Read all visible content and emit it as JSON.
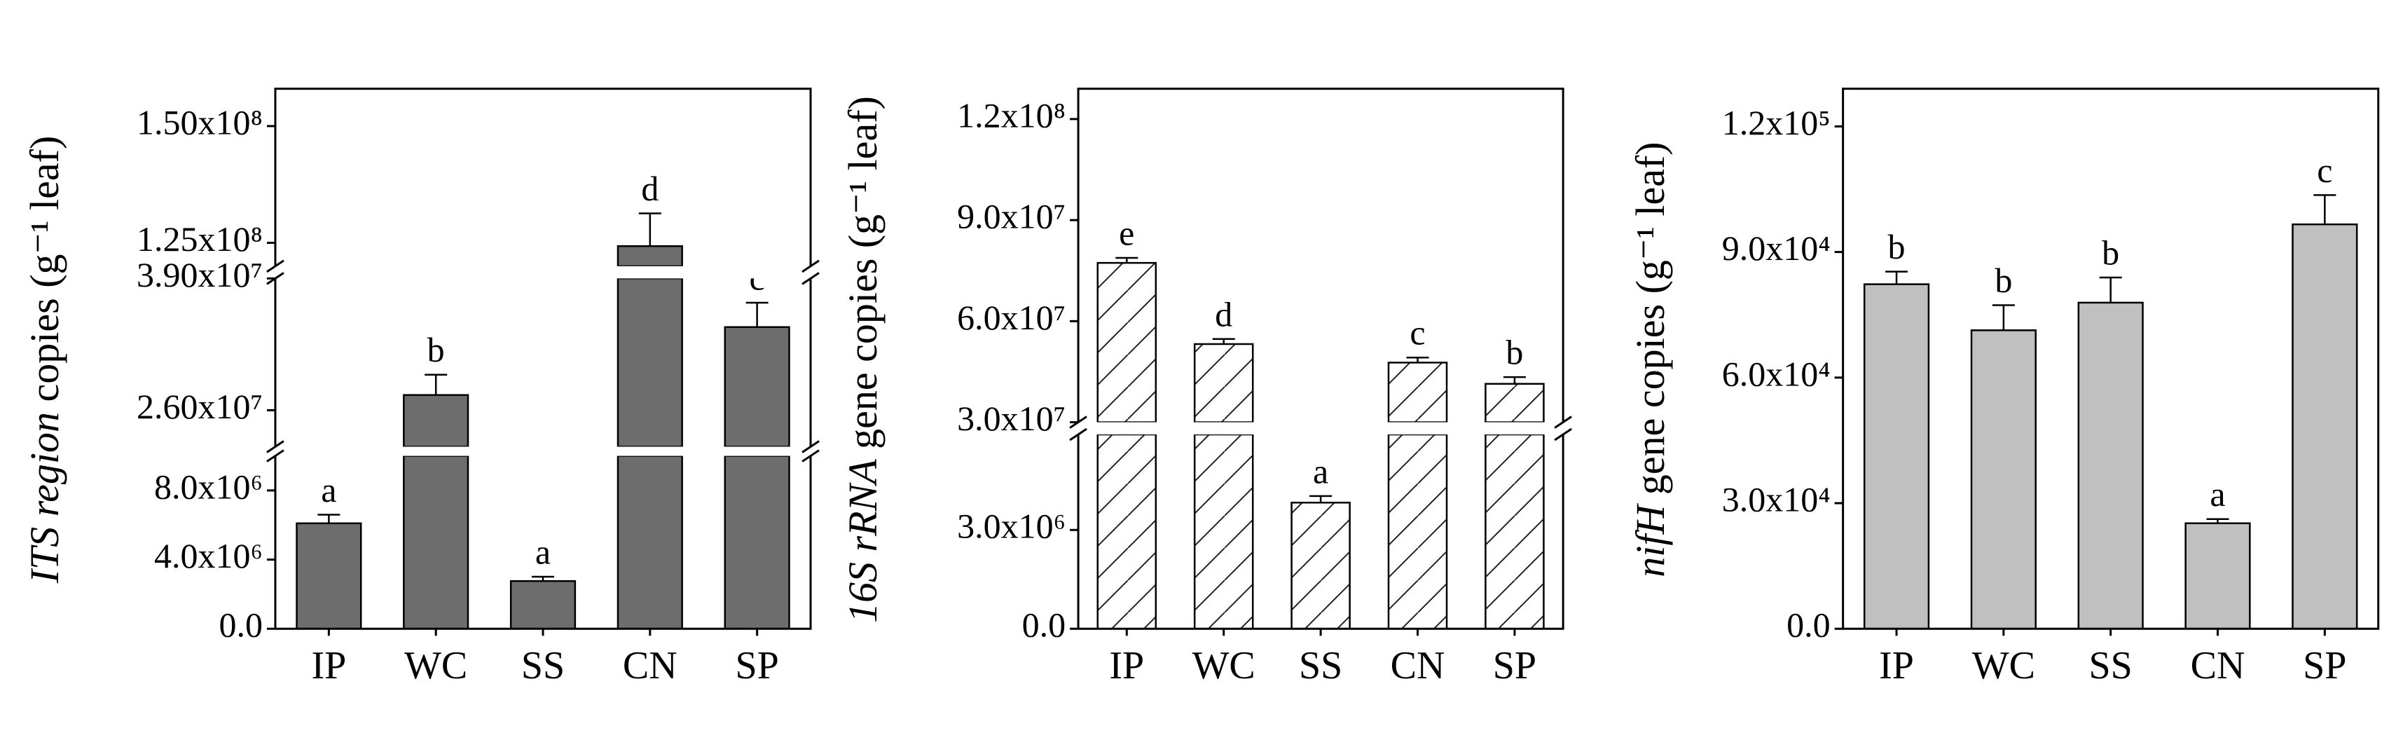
{
  "chart_data": [
    {
      "type": "bar",
      "ylabel_italic": "ITS region",
      "ylabel": "copies (g⁻¹ leaf)",
      "color": "#6d6d6d",
      "categories": [
        "IP",
        "WC",
        "SS",
        "CN",
        "SP"
      ],
      "values": [
        6100000,
        27500000,
        2760000,
        124300000,
        34200000
      ],
      "errors": [
        500000,
        2000000,
        250000,
        7000000,
        2400000
      ],
      "annotations": [
        "a",
        "b",
        "a",
        "d",
        "c"
      ],
      "y_segments": [
        {
          "ylim": [
            0,
            10000000
          ],
          "yticks": [
            {
              "value": 0,
              "label": "0.0"
            },
            {
              "value": 4000000,
              "label": "4.0x10⁶"
            },
            {
              "value": 8000000,
              "label": "8.0x10⁶"
            }
          ]
        },
        {
          "ylim": [
            22400000,
            39000000
          ],
          "yticks": [
            {
              "value": 26000000,
              "label": "2.60x10⁷"
            },
            {
              "value": 39000000,
              "label": "3.90x10⁷"
            }
          ]
        },
        {
          "ylim": [
            120000000,
            158000000
          ],
          "yticks": [
            {
              "value": 125000000,
              "label": "1.25x10⁸"
            },
            {
              "value": 150000000,
              "label": "1.50x10⁸"
            }
          ]
        }
      ]
    },
    {
      "type": "bar",
      "ylabel_italic": "16S rRNA",
      "ylabel": "gene copies (g⁻¹ leaf)",
      "color": "#ffffff",
      "hatch": true,
      "categories": [
        "IP",
        "WC",
        "SS",
        "CN",
        "SP"
      ],
      "values": [
        77300000,
        53200000,
        3830000,
        47700000,
        41400000
      ],
      "errors": [
        1500000,
        1500000,
        200000,
        1500000,
        2000000
      ],
      "annotations": [
        "e",
        "d",
        "a",
        "c",
        "b"
      ],
      "y_segments": [
        {
          "ylim": [
            0,
            5900000
          ],
          "yticks": [
            {
              "value": 0,
              "label": "0.0"
            },
            {
              "value": 3000000,
              "label": "3.0x10⁶"
            }
          ]
        },
        {
          "ylim": [
            30000000,
            129000000
          ],
          "yticks": [
            {
              "value": 30000000,
              "label": "3.0x10⁷"
            },
            {
              "value": 60000000,
              "label": "6.0x10⁷"
            },
            {
              "value": 90000000,
              "label": "9.0x10⁷"
            },
            {
              "value": 120000000,
              "label": "1.2x10⁸"
            }
          ]
        }
      ]
    },
    {
      "type": "bar",
      "ylabel_italic": "nifH",
      "ylabel": "gene copies (g⁻¹ leaf)",
      "color": "#c0c0c0",
      "categories": [
        "IP",
        "WC",
        "SS",
        "CN",
        "SP"
      ],
      "values": [
        82300,
        71300,
        77900,
        25200,
        96600
      ],
      "errors": [
        3000,
        6000,
        6000,
        1000,
        7000
      ],
      "annotations": [
        "b",
        "b",
        "b",
        "a",
        "c"
      ],
      "ylim": [
        0,
        129000
      ],
      "yticks": [
        {
          "value": 0,
          "label": "0.0"
        },
        {
          "value": 30000,
          "label": "3.0x10⁴"
        },
        {
          "value": 60000,
          "label": "6.0x10⁴"
        },
        {
          "value": 90000,
          "label": "9.0x10⁴"
        },
        {
          "value": 120000,
          "label": "1.2x10⁵"
        }
      ]
    }
  ]
}
